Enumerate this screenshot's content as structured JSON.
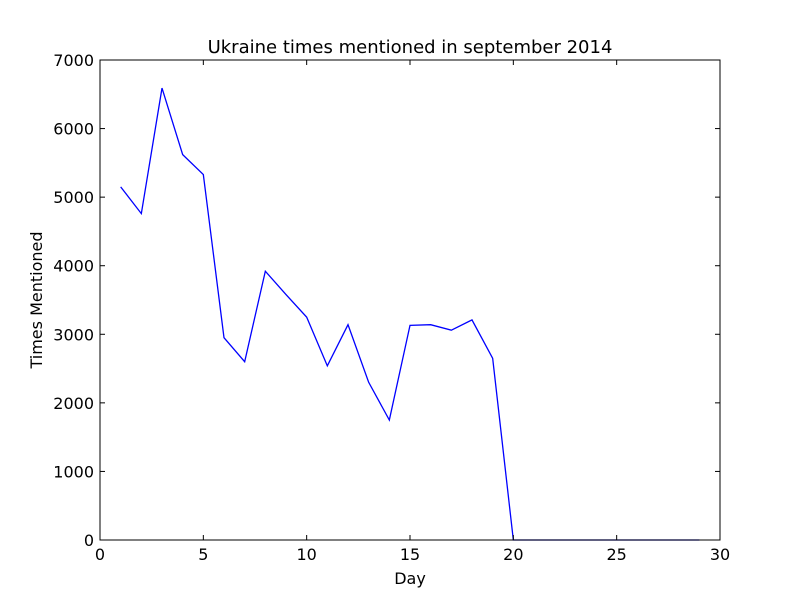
{
  "chart_data": {
    "type": "line",
    "title": "Ukraine times mentioned in september 2014",
    "xlabel": "Day",
    "ylabel": "Times Mentioned",
    "xlim": [
      0,
      30
    ],
    "ylim": [
      0,
      7000
    ],
    "xticks": [
      0,
      5,
      10,
      15,
      20,
      25,
      30
    ],
    "yticks": [
      0,
      1000,
      2000,
      3000,
      4000,
      5000,
      6000,
      7000
    ],
    "grid": false,
    "series": [
      {
        "color": "#0000ff",
        "x": [
          1,
          2,
          3,
          4,
          5,
          6,
          7,
          8,
          9,
          10,
          11,
          12,
          13,
          14,
          15,
          16,
          17,
          18,
          19,
          20,
          21,
          22,
          23,
          24,
          25,
          26,
          27,
          28,
          29
        ],
        "y": [
          5150,
          4760,
          6590,
          5620,
          5330,
          2950,
          2600,
          3920,
          3580,
          3250,
          2540,
          3140,
          2300,
          1750,
          3130,
          3140,
          3060,
          3210,
          2650,
          0,
          0,
          0,
          0,
          0,
          0,
          0,
          0,
          0,
          0
        ]
      }
    ]
  }
}
